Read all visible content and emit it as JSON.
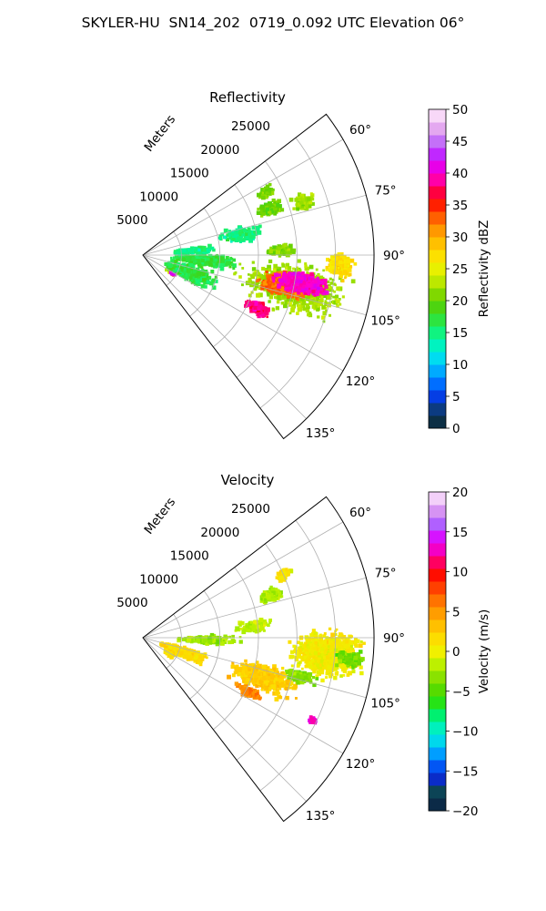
{
  "title": "SKYLER-HU  SN14_202  0719_0.092 UTC Elevation 06°",
  "chart_data": [
    {
      "type": "heatmap",
      "projection": "polar-sector",
      "title": "Reflectivity",
      "radial_axis_label": "Meters",
      "radial_ticks": [
        5000,
        10000,
        15000,
        20000,
        25000
      ],
      "radial_tick_labels": [
        "5000",
        "10000",
        "15000",
        "20000",
        "25000"
      ],
      "rlim": [
        0,
        30000
      ],
      "azimuth_range_deg": [
        52.5,
        142.5
      ],
      "azimuth_ticks": [
        60,
        75,
        90,
        105,
        120,
        135
      ],
      "azimuth_tick_labels": [
        "60°",
        "75°",
        "90°",
        "105°",
        "120°",
        "135°"
      ],
      "grid": true,
      "colorbar": {
        "label": "Reflectivity dBZ",
        "range": [
          0,
          50
        ],
        "ticks": [
          0,
          5,
          10,
          15,
          20,
          25,
          30,
          35,
          40,
          45,
          50
        ],
        "tick_labels": [
          "0",
          "5",
          "10",
          "15",
          "20",
          "25",
          "30",
          "35",
          "40",
          "45",
          "50"
        ],
        "stops": [
          {
            "v": 0,
            "c": "#0a1450"
          },
          {
            "v": 2,
            "c": "#0d4a3a"
          },
          {
            "v": 4,
            "c": "#0a2cc8"
          },
          {
            "v": 6,
            "c": "#0050ff"
          },
          {
            "v": 8,
            "c": "#008cff"
          },
          {
            "v": 10,
            "c": "#00c8ff"
          },
          {
            "v": 12,
            "c": "#00f0e0"
          },
          {
            "v": 14,
            "c": "#00f5a0"
          },
          {
            "v": 16,
            "c": "#20f060"
          },
          {
            "v": 18,
            "c": "#3ad820"
          },
          {
            "v": 20,
            "c": "#60d000"
          },
          {
            "v": 22,
            "c": "#a0e000"
          },
          {
            "v": 24,
            "c": "#d8f000"
          },
          {
            "v": 26,
            "c": "#f8f000"
          },
          {
            "v": 28,
            "c": "#ffd000"
          },
          {
            "v": 30,
            "c": "#ffb000"
          },
          {
            "v": 32,
            "c": "#ff8000"
          },
          {
            "v": 34,
            "c": "#ff4000"
          },
          {
            "v": 36,
            "c": "#ff0000"
          },
          {
            "v": 38,
            "c": "#ff0080"
          },
          {
            "v": 40,
            "c": "#ff00d0"
          },
          {
            "v": 42,
            "c": "#d000ff"
          },
          {
            "v": 44,
            "c": "#b050ff"
          },
          {
            "v": 46,
            "c": "#d890f0"
          },
          {
            "v": 48,
            "c": "#f0c0f0"
          },
          {
            "v": 50,
            "c": "#fff0ff"
          }
        ]
      },
      "echo_regions": [
        {
          "az": 102,
          "r": 20000,
          "da": 12,
          "dr": 9000,
          "v": 22,
          "n": 850
        },
        {
          "az": 102,
          "r": 19000,
          "da": 6,
          "dr": 4500,
          "v": 33,
          "n": 650
        },
        {
          "az": 100,
          "r": 21000,
          "da": 5,
          "dr": 4500,
          "v": 40,
          "n": 500
        },
        {
          "az": 115,
          "r": 16500,
          "da": 4,
          "dr": 2500,
          "v": 38,
          "n": 180
        },
        {
          "az": 93,
          "r": 25500,
          "da": 5,
          "dr": 2500,
          "v": 27,
          "n": 250
        },
        {
          "az": 95,
          "r": 8000,
          "da": 7,
          "dr": 5500,
          "v": 17,
          "n": 350
        },
        {
          "az": 85,
          "r": 6500,
          "da": 4,
          "dr": 3500,
          "v": 15,
          "n": 180
        },
        {
          "az": 70,
          "r": 17500,
          "da": 4,
          "dr": 2200,
          "v": 20,
          "n": 140
        },
        {
          "az": 72,
          "r": 22000,
          "da": 4,
          "dr": 2000,
          "v": 22,
          "n": 110
        },
        {
          "az": 63,
          "r": 18000,
          "da": 3,
          "dr": 1500,
          "v": 21,
          "n": 60
        },
        {
          "az": 120,
          "r": 4300,
          "da": 6,
          "dr": 900,
          "v": 24,
          "n": 80
        },
        {
          "az": 121,
          "r": 4600,
          "da": 2,
          "dr": 500,
          "v": 41,
          "n": 40
        },
        {
          "az": 110,
          "r": 6500,
          "da": 12,
          "dr": 5000,
          "v": 17,
          "n": 320
        },
        {
          "az": 88,
          "r": 18000,
          "da": 3,
          "dr": 3000,
          "v": 21,
          "n": 100
        },
        {
          "az": 78,
          "r": 13000,
          "da": 6,
          "dr": 4000,
          "v": 15,
          "n": 120
        }
      ]
    },
    {
      "type": "heatmap",
      "projection": "polar-sector",
      "title": "Velocity",
      "radial_axis_label": "Meters",
      "radial_ticks": [
        5000,
        10000,
        15000,
        20000,
        25000
      ],
      "radial_tick_labels": [
        "5000",
        "10000",
        "15000",
        "20000",
        "25000"
      ],
      "rlim": [
        0,
        30000
      ],
      "azimuth_range_deg": [
        52.5,
        142.5
      ],
      "azimuth_ticks": [
        60,
        75,
        90,
        105,
        120,
        135
      ],
      "azimuth_tick_labels": [
        "60°",
        "75°",
        "90°",
        "105°",
        "120°",
        "135°"
      ],
      "grid": true,
      "colorbar": {
        "label": "Velocity (m/s)",
        "range": [
          -20,
          20
        ],
        "ticks": [
          -20,
          -15,
          -10,
          -5,
          0,
          5,
          10,
          15,
          20
        ],
        "tick_labels": [
          "−20",
          "−15",
          "−10",
          "−5",
          "0",
          "5",
          "10",
          "15",
          "20"
        ],
        "stops": [
          {
            "v": -20,
            "c": "#0a1450"
          },
          {
            "v": -18,
            "c": "#0d4a3a"
          },
          {
            "v": -16,
            "c": "#0a2cc8"
          },
          {
            "v": -14,
            "c": "#0060ff"
          },
          {
            "v": -12,
            "c": "#00c8ff"
          },
          {
            "v": -10,
            "c": "#00f0d0"
          },
          {
            "v": -8,
            "c": "#00f070"
          },
          {
            "v": -6,
            "c": "#30e000"
          },
          {
            "v": -4,
            "c": "#70d800"
          },
          {
            "v": -2,
            "c": "#b0f000"
          },
          {
            "v": 0,
            "c": "#f0f000"
          },
          {
            "v": 2,
            "c": "#ffd800"
          },
          {
            "v": 4,
            "c": "#ffb000"
          },
          {
            "v": 6,
            "c": "#ff8000"
          },
          {
            "v": 8,
            "c": "#ff4000"
          },
          {
            "v": 10,
            "c": "#ff0000"
          },
          {
            "v": 12,
            "c": "#ff00a0"
          },
          {
            "v": 14,
            "c": "#e000ff"
          },
          {
            "v": 16,
            "c": "#b060ff"
          },
          {
            "v": 18,
            "c": "#e0a0f0"
          },
          {
            "v": 20,
            "c": "#fff0ff"
          }
        ]
      },
      "echo_regions": [
        {
          "az": 95,
          "r": 24000,
          "da": 9,
          "dr": 6000,
          "v": 0.5,
          "n": 900
        },
        {
          "az": 108,
          "r": 16500,
          "da": 8,
          "dr": 5500,
          "v": 2.5,
          "n": 600
        },
        {
          "az": 104,
          "r": 21000,
          "da": 3,
          "dr": 3000,
          "v": -3.5,
          "n": 160
        },
        {
          "az": 96,
          "r": 27000,
          "da": 3,
          "dr": 2500,
          "v": -4,
          "n": 120
        },
        {
          "az": 117,
          "r": 15500,
          "da": 3,
          "dr": 2500,
          "v": 5.5,
          "n": 150
        },
        {
          "az": 116,
          "r": 24500,
          "da": 1.5,
          "dr": 800,
          "v": 13,
          "n": 35
        },
        {
          "az": 110,
          "r": 5500,
          "da": 10,
          "dr": 4500,
          "v": 1.5,
          "n": 320
        },
        {
          "az": 92,
          "r": 8500,
          "da": 5,
          "dr": 5000,
          "v": -2.5,
          "n": 260
        },
        {
          "az": 72,
          "r": 17500,
          "da": 4,
          "dr": 2200,
          "v": -2,
          "n": 140
        },
        {
          "az": 66,
          "r": 20000,
          "da": 3,
          "dr": 1500,
          "v": 1,
          "n": 70
        },
        {
          "az": 120,
          "r": 4000,
          "da": 6,
          "dr": 1000,
          "v": 2,
          "n": 90
        },
        {
          "az": 84,
          "r": 14500,
          "da": 4,
          "dr": 3000,
          "v": -1.5,
          "n": 120
        }
      ]
    }
  ]
}
